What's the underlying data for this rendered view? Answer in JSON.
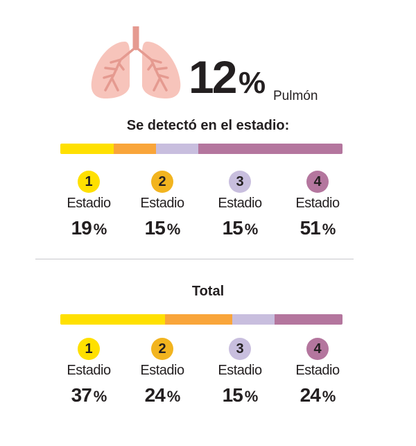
{
  "header": {
    "value": "12",
    "percent_sign": "%",
    "organ": "Pulmón",
    "icon": "lungs-icon"
  },
  "colors": {
    "stage1": "#FFE000",
    "stage2_bar": "#F9A53A",
    "stage2_circle": "#F2B41F",
    "stage3": "#C8BEDE",
    "stage4": "#B4769E"
  },
  "chart_data": [
    {
      "type": "bar",
      "title": "Se detectó en el estadio:",
      "stacked": true,
      "categories": [
        "1",
        "2",
        "3",
        "4"
      ],
      "values": [
        19,
        15,
        15,
        51
      ],
      "unit": "%",
      "label": "Estadio"
    },
    {
      "type": "bar",
      "title": "Total",
      "stacked": true,
      "categories": [
        "1",
        "2",
        "3",
        "4"
      ],
      "values": [
        37,
        24,
        15,
        24
      ],
      "unit": "%",
      "label": "Estadio"
    }
  ]
}
